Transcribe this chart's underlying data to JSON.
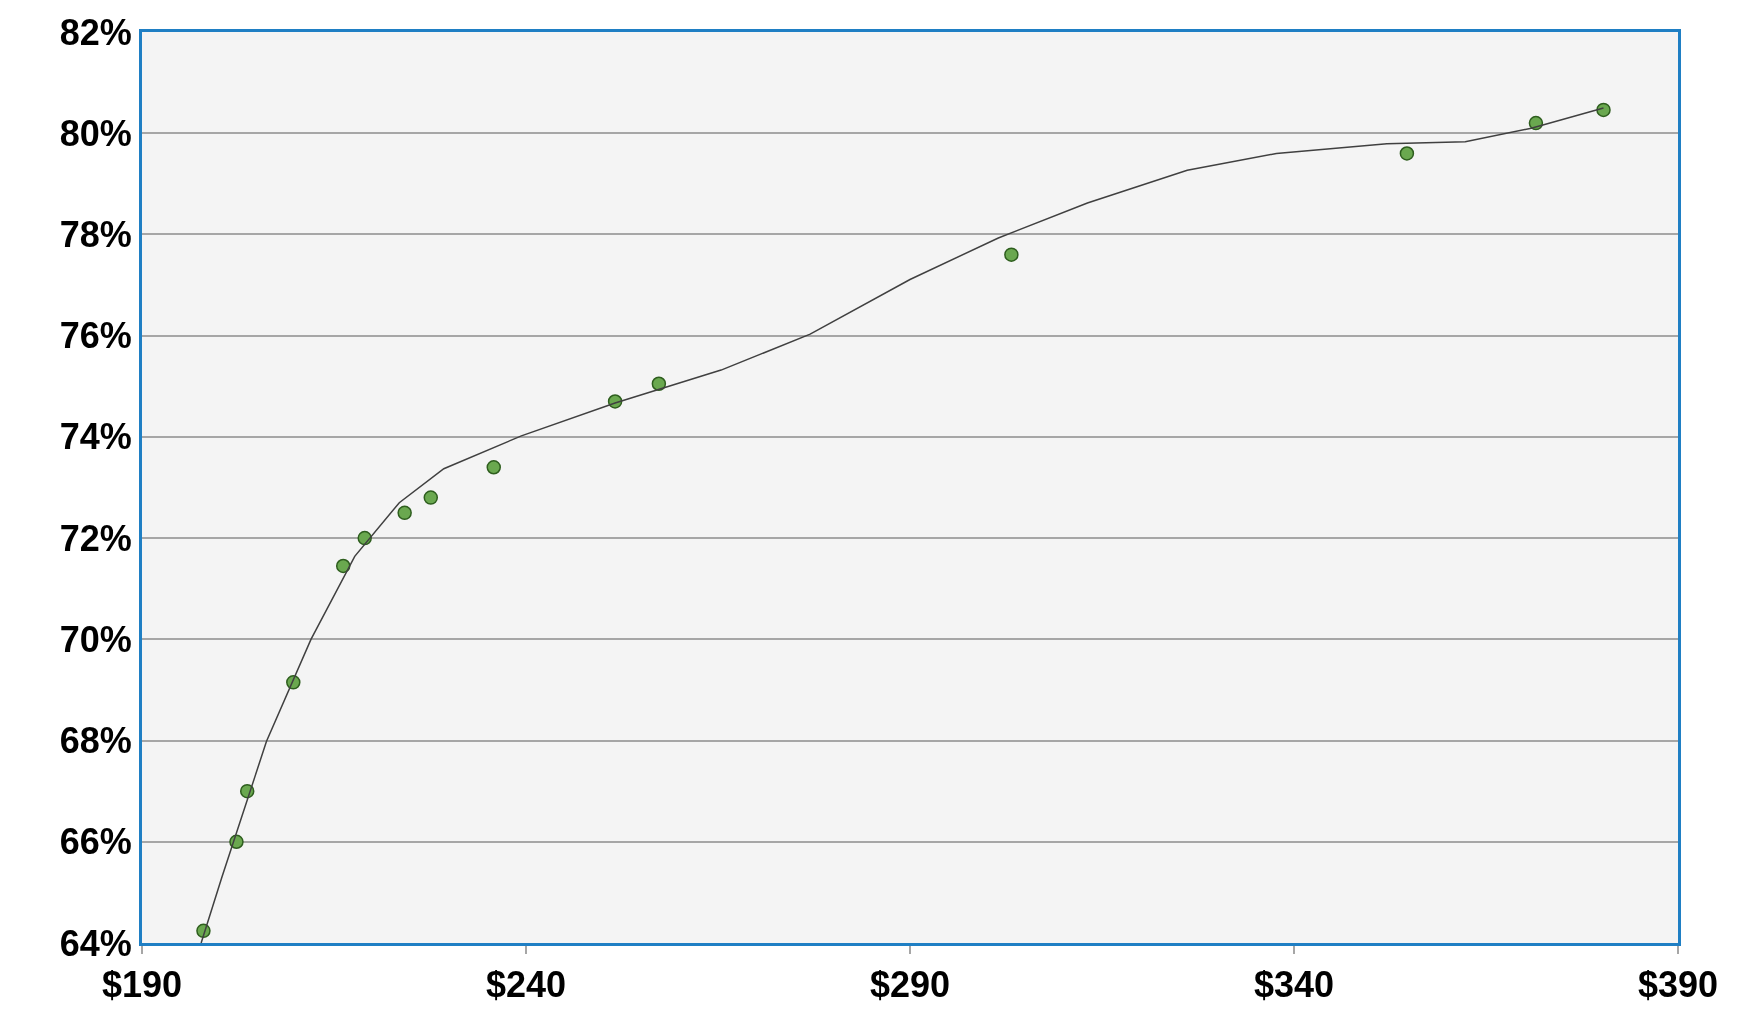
{
  "chart_data": {
    "type": "scatter",
    "xlim": [
      190,
      390
    ],
    "xticks": [
      {
        "value": 190,
        "label": "$190"
      },
      {
        "value": 240,
        "label": "$240"
      },
      {
        "value": 290,
        "label": "$290"
      },
      {
        "value": 340,
        "label": "$340"
      },
      {
        "value": 390,
        "label": "$390"
      }
    ],
    "ylim": [
      64,
      82
    ],
    "yticks": [
      {
        "value": 64,
        "label": "64%"
      },
      {
        "value": 66,
        "label": "66%"
      },
      {
        "value": 68,
        "label": "68%"
      },
      {
        "value": 70,
        "label": "70%"
      },
      {
        "value": 72,
        "label": "72%"
      },
      {
        "value": 74,
        "label": "74%"
      },
      {
        "value": 76,
        "label": "76%"
      },
      {
        "value": 78,
        "label": "78%"
      },
      {
        "value": 80,
        "label": "80%"
      },
      {
        "value": 82,
        "label": "82%"
      }
    ],
    "grid": "y",
    "series": [
      {
        "marker": "circle",
        "color": "#6aa84f",
        "x": [
          198,
          202.3,
          203.7,
          209.7,
          216.2,
          219,
          224.2,
          227.6,
          235.8,
          251.6,
          257.3,
          303.2,
          354.7,
          371.5,
          380.3
        ],
        "values": [
          64.24,
          66,
          67,
          69.15,
          71.45,
          72,
          72.5,
          72.8,
          73.4,
          74.7,
          75.05,
          77.6,
          79.6,
          80.2,
          80.46
        ]
      },
      {
        "type": "line",
        "color": "#404040",
        "line_style": "solid",
        "x": [
          197.7,
          200.4,
          206.2,
          212,
          217.7,
          223.5,
          229.3,
          239.4,
          251.6,
          265.4,
          277,
          290,
          301.5,
          313.1,
          326.1,
          337.7,
          352.1,
          362.3,
          370.9,
          380.3
        ],
        "values": [
          64,
          65.3,
          67.98,
          70,
          71.64,
          72.7,
          73.37,
          74.02,
          74.67,
          75.32,
          76.03,
          77.11,
          77.93,
          78.62,
          79.27,
          79.6,
          79.79,
          79.83,
          80.1,
          80.5
        ]
      }
    ]
  }
}
